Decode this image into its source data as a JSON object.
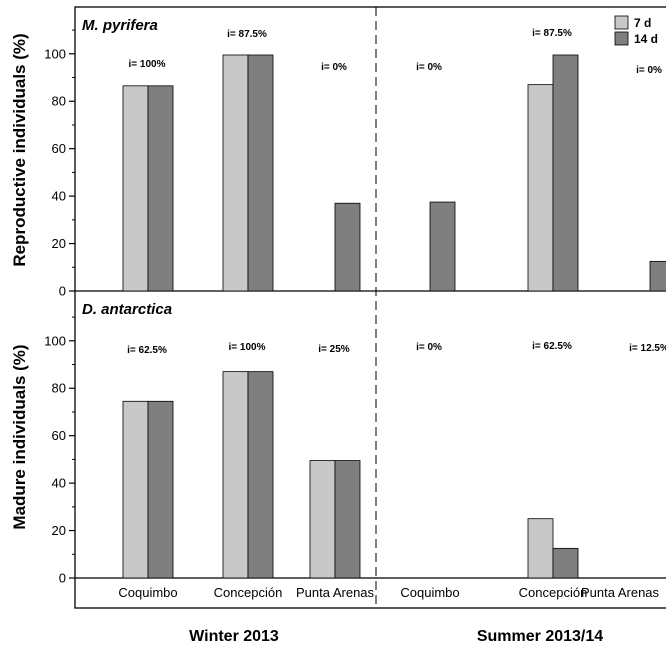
{
  "chart_data": {
    "type": "bar",
    "seasons": [
      "Winter 2013",
      "Summer 2013/14"
    ],
    "categories": [
      "Coquimbo",
      "Concepción",
      "Punta Arenas"
    ],
    "legend": {
      "position": "top-right",
      "items": [
        {
          "name": "7 d",
          "color": "#c8c8c8"
        },
        {
          "name": "14 d",
          "color": "#7f7f7f"
        }
      ]
    },
    "panels": [
      {
        "title": "M. pyrifera",
        "ylabel": "Reproductive individuals (%)",
        "ylim": [
          0,
          120
        ],
        "yticks": [
          0,
          20,
          40,
          60,
          80,
          100
        ],
        "series": [
          {
            "name": "7 d",
            "values": [
              86.5,
              99.5,
              0,
              0,
              87,
              0
            ]
          },
          {
            "name": "14 d",
            "values": [
              86.5,
              99.5,
              37,
              37.5,
              99.5,
              12.5
            ]
          }
        ],
        "annotations": [
          "i= 100%",
          "i= 87.5%",
          "i= 0%",
          "i= 0%",
          "i= 87.5%",
          "i= 0%"
        ]
      },
      {
        "title": "D. antarctica",
        "ylabel": "Madure individuals (%)",
        "ylim": [
          0,
          120
        ],
        "yticks": [
          0,
          20,
          40,
          60,
          80,
          100
        ],
        "series": [
          {
            "name": "7 d",
            "values": [
              74.5,
              87,
              49.5,
              0,
              25,
              0
            ]
          },
          {
            "name": "14 d",
            "values": [
              74.5,
              87,
              49.5,
              0,
              12.5,
              0
            ]
          }
        ],
        "annotations": [
          "i= 62.5%",
          "i= 100%",
          "i= 25%",
          "i= 0%",
          "i= 62.5%",
          "i= 12.5%"
        ]
      }
    ],
    "x_tick_labels": [
      "Coquimbo",
      "Concepción",
      "Punta Arenas",
      "Coquimbo",
      "Concepción",
      "Punta Arenas"
    ]
  }
}
